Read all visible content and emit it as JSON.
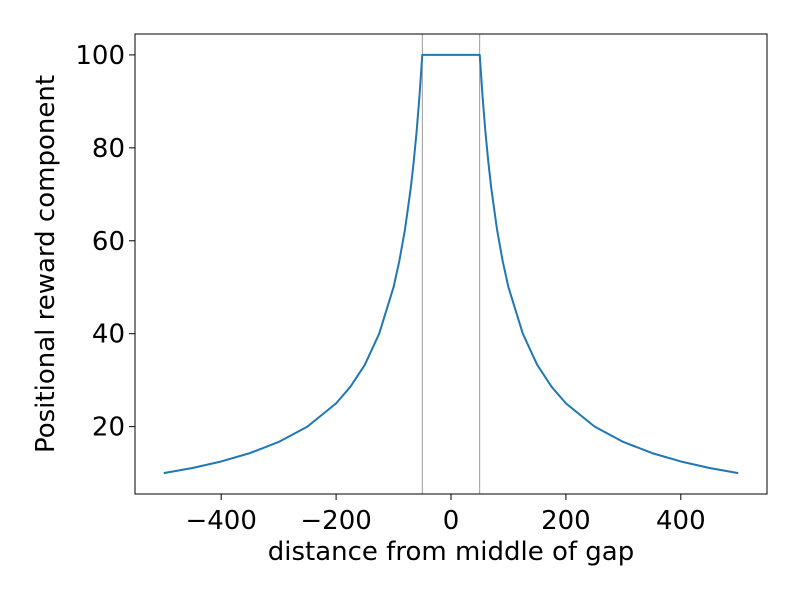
{
  "chart_data": {
    "type": "line",
    "title": "",
    "xlabel": "distance from middle of gap",
    "ylabel": "Positional reward component",
    "xlim": [
      -550,
      550
    ],
    "ylim": [
      5.5,
      104.5
    ],
    "x_ticks": [
      -400,
      -200,
      0,
      200,
      400
    ],
    "x_tick_labels": [
      "−400",
      "−200",
      "0",
      "200",
      "400"
    ],
    "y_ticks": [
      20,
      40,
      60,
      80,
      100
    ],
    "y_tick_labels": [
      "20",
      "40",
      "60",
      "80",
      "100"
    ],
    "grid": false,
    "legend": "none",
    "vertical_lines": [
      -50,
      50
    ],
    "series": [
      {
        "x": [
          -500,
          -450,
          -400,
          -350,
          -300,
          -250,
          -200,
          -175,
          -150,
          -125,
          -100,
          -90,
          -80,
          -70,
          -65,
          -60,
          -55,
          -50,
          0,
          50,
          55,
          60,
          65,
          70,
          80,
          90,
          100,
          125,
          150,
          175,
          200,
          250,
          300,
          350,
          400,
          450,
          500
        ],
        "y": [
          10,
          11.1,
          12.5,
          14.3,
          16.7,
          20,
          25,
          28.6,
          33.3,
          40,
          50,
          55.6,
          62.5,
          71.4,
          76.9,
          83.3,
          90.9,
          100,
          100,
          100,
          90.9,
          83.3,
          76.9,
          71.4,
          62.5,
          55.6,
          50,
          40,
          33.3,
          28.6,
          25,
          20,
          16.7,
          14.3,
          12.5,
          11.1,
          10
        ]
      }
    ],
    "colors": {
      "line": "#1f77b4",
      "vline": "#808080",
      "axis": "#000000"
    }
  }
}
